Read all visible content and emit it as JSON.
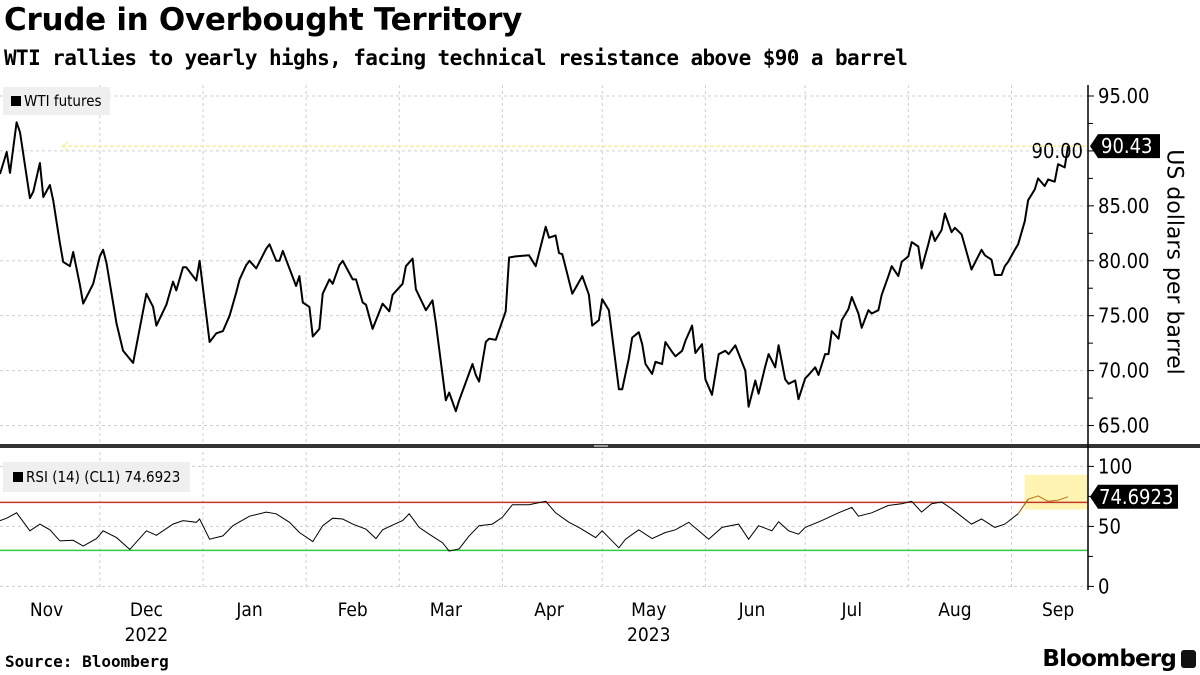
{
  "header": {
    "title": "Crude in Overbought Territory",
    "subtitle": "WTI rallies to yearly highs, facing technical resistance above $90 a barrel"
  },
  "footer": {
    "source": "Source: Bloomberg",
    "brand": "Bloomberg"
  },
  "colors": {
    "price_line": "#000000",
    "rsi_line": "#000000",
    "rsi_highlight_line": "#b8741a",
    "overbought_line": "#c0392b",
    "oversold_line": "#2ecc40",
    "highlight_fill": "#fff3a8",
    "last_value_line": "#f4f1a0"
  },
  "chart_data": [
    {
      "type": "line",
      "legend": "WTI futures",
      "ylabel": "US dollars per barrel",
      "xlim": [
        "2022-11-01",
        "2023-09-24"
      ],
      "ylim": [
        63.5,
        96
      ],
      "yticks": [
        "95.00",
        "90.00",
        "85.00",
        "80.00",
        "75.00",
        "70.00",
        "65.00"
      ],
      "last_value_label": "90.43",
      "last_value": 90.43,
      "grid": true,
      "legend_position": "top-left",
      "points": [
        [
          "2022-11-01",
          87.9
        ],
        [
          "2022-11-03",
          89.9
        ],
        [
          "2022-11-04",
          88.0
        ],
        [
          "2022-11-06",
          92.6
        ],
        [
          "2022-11-07",
          91.7
        ],
        [
          "2022-11-10",
          85.7
        ],
        [
          "2022-11-11",
          86.3
        ],
        [
          "2022-11-13",
          88.9
        ],
        [
          "2022-11-14",
          85.8
        ],
        [
          "2022-11-16",
          86.9
        ],
        [
          "2022-11-17",
          85.5
        ],
        [
          "2022-11-19",
          81.6
        ],
        [
          "2022-11-20",
          79.9
        ],
        [
          "2022-11-22",
          79.5
        ],
        [
          "2022-11-23",
          80.8
        ],
        [
          "2022-11-25",
          77.8
        ],
        [
          "2022-11-26",
          76.1
        ],
        [
          "2022-11-29",
          77.9
        ],
        [
          "2022-12-01",
          80.4
        ],
        [
          "2022-12-02",
          81.0
        ],
        [
          "2022-12-03",
          79.8
        ],
        [
          "2022-12-06",
          74.3
        ],
        [
          "2022-12-08",
          71.8
        ],
        [
          "2022-12-11",
          70.7
        ],
        [
          "2022-12-15",
          77.0
        ],
        [
          "2022-12-17",
          75.8
        ],
        [
          "2022-12-18",
          74.1
        ],
        [
          "2022-12-21",
          76.0
        ],
        [
          "2022-12-23",
          78.1
        ],
        [
          "2022-12-24",
          77.3
        ],
        [
          "2022-12-26",
          79.4
        ],
        [
          "2022-12-27",
          79.4
        ],
        [
          "2022-12-30",
          78.2
        ],
        [
          "2022-12-31",
          80.0
        ],
        [
          "2023-01-03",
          72.6
        ],
        [
          "2023-01-05",
          73.4
        ],
        [
          "2023-01-07",
          73.6
        ],
        [
          "2023-01-09",
          75.0
        ],
        [
          "2023-01-11",
          77.1
        ],
        [
          "2023-01-12",
          78.3
        ],
        [
          "2023-01-14",
          79.6
        ],
        [
          "2023-01-15",
          80.0
        ],
        [
          "2023-01-17",
          79.3
        ],
        [
          "2023-01-20",
          81.1
        ],
        [
          "2023-01-21",
          81.5
        ],
        [
          "2023-01-23",
          80.0
        ],
        [
          "2023-01-24",
          80.0
        ],
        [
          "2023-01-25",
          80.9
        ],
        [
          "2023-01-29",
          77.7
        ],
        [
          "2023-01-30",
          78.6
        ],
        [
          "2023-01-31",
          76.2
        ],
        [
          "2023-02-02",
          75.8
        ],
        [
          "2023-02-03",
          73.1
        ],
        [
          "2023-02-05",
          73.8
        ],
        [
          "2023-02-06",
          77.0
        ],
        [
          "2023-02-08",
          78.3
        ],
        [
          "2023-02-09",
          77.9
        ],
        [
          "2023-02-11",
          79.6
        ],
        [
          "2023-02-12",
          80.0
        ],
        [
          "2023-02-15",
          78.3
        ],
        [
          "2023-02-16",
          78.3
        ],
        [
          "2023-02-18",
          76.2
        ],
        [
          "2023-02-19",
          76.0
        ],
        [
          "2023-02-21",
          73.8
        ],
        [
          "2023-02-24",
          76.1
        ],
        [
          "2023-02-26",
          75.4
        ],
        [
          "2023-02-27",
          76.9
        ],
        [
          "2023-03-02",
          77.9
        ],
        [
          "2023-03-03",
          79.5
        ],
        [
          "2023-03-05",
          80.2
        ],
        [
          "2023-03-06",
          77.4
        ],
        [
          "2023-03-09",
          75.5
        ],
        [
          "2023-03-11",
          76.4
        ],
        [
          "2023-03-12",
          74.3
        ],
        [
          "2023-03-15",
          67.3
        ],
        [
          "2023-03-16",
          68.0
        ],
        [
          "2023-03-18",
          66.3
        ],
        [
          "2023-03-19",
          67.3
        ],
        [
          "2023-03-23",
          70.6
        ],
        [
          "2023-03-24",
          69.6
        ],
        [
          "2023-03-25",
          69.0
        ],
        [
          "2023-03-27",
          72.6
        ],
        [
          "2023-03-28",
          72.9
        ],
        [
          "2023-03-30",
          72.8
        ],
        [
          "2023-04-02",
          75.4
        ],
        [
          "2023-04-03",
          80.3
        ],
        [
          "2023-04-05",
          80.4
        ],
        [
          "2023-04-09",
          80.5
        ],
        [
          "2023-04-11",
          79.5
        ],
        [
          "2023-04-14",
          83.1
        ],
        [
          "2023-04-15",
          82.1
        ],
        [
          "2023-04-17",
          82.3
        ],
        [
          "2023-04-18",
          80.7
        ],
        [
          "2023-04-19",
          80.6
        ],
        [
          "2023-04-22",
          77.0
        ],
        [
          "2023-04-25",
          78.6
        ],
        [
          "2023-04-27",
          76.9
        ],
        [
          "2023-04-28",
          74.1
        ],
        [
          "2023-04-30",
          74.6
        ],
        [
          "2023-05-01",
          76.5
        ],
        [
          "2023-05-03",
          75.5
        ],
        [
          "2023-05-06",
          68.3
        ],
        [
          "2023-05-07",
          68.3
        ],
        [
          "2023-05-09",
          71.1
        ],
        [
          "2023-05-10",
          73.0
        ],
        [
          "2023-05-12",
          73.5
        ],
        [
          "2023-05-13",
          72.4
        ],
        [
          "2023-05-14",
          70.6
        ],
        [
          "2023-05-16",
          69.7
        ],
        [
          "2023-05-17",
          70.8
        ],
        [
          "2023-05-19",
          70.6
        ],
        [
          "2023-05-20",
          72.6
        ],
        [
          "2023-05-22",
          71.7
        ],
        [
          "2023-05-23",
          71.3
        ],
        [
          "2023-05-25",
          71.8
        ],
        [
          "2023-05-26",
          72.7
        ],
        [
          "2023-05-28",
          74.1
        ],
        [
          "2023-05-29",
          71.6
        ],
        [
          "2023-05-31",
          72.4
        ],
        [
          "2023-06-01",
          69.2
        ],
        [
          "2023-06-03",
          67.8
        ],
        [
          "2023-06-05",
          71.5
        ],
        [
          "2023-06-07",
          71.8
        ],
        [
          "2023-06-08",
          71.5
        ],
        [
          "2023-06-10",
          72.3
        ],
        [
          "2023-06-13",
          70.0
        ],
        [
          "2023-06-14",
          66.7
        ],
        [
          "2023-06-16",
          69.1
        ],
        [
          "2023-06-17",
          67.9
        ],
        [
          "2023-06-19",
          70.4
        ],
        [
          "2023-06-20",
          71.5
        ],
        [
          "2023-06-22",
          70.3
        ],
        [
          "2023-06-23",
          72.3
        ],
        [
          "2023-06-25",
          69.2
        ],
        [
          "2023-06-26",
          68.8
        ],
        [
          "2023-06-28",
          69.1
        ],
        [
          "2023-06-29",
          67.4
        ],
        [
          "2023-07-01",
          69.3
        ],
        [
          "2023-07-02",
          69.6
        ],
        [
          "2023-07-04",
          70.3
        ],
        [
          "2023-07-05",
          69.6
        ],
        [
          "2023-07-07",
          71.5
        ],
        [
          "2023-07-08",
          71.5
        ],
        [
          "2023-07-09",
          73.6
        ],
        [
          "2023-07-11",
          72.9
        ],
        [
          "2023-07-12",
          74.6
        ],
        [
          "2023-07-14",
          75.6
        ],
        [
          "2023-07-15",
          76.7
        ],
        [
          "2023-07-17",
          75.2
        ],
        [
          "2023-07-18",
          73.9
        ],
        [
          "2023-07-20",
          75.5
        ],
        [
          "2023-07-21",
          75.2
        ],
        [
          "2023-07-23",
          75.5
        ],
        [
          "2023-07-24",
          76.9
        ],
        [
          "2023-07-26",
          78.6
        ],
        [
          "2023-07-27",
          79.5
        ],
        [
          "2023-07-29",
          78.6
        ],
        [
          "2023-07-30",
          79.9
        ],
        [
          "2023-08-01",
          80.4
        ],
        [
          "2023-08-02",
          81.7
        ],
        [
          "2023-08-04",
          81.3
        ],
        [
          "2023-08-05",
          79.3
        ],
        [
          "2023-08-07",
          81.5
        ],
        [
          "2023-08-08",
          82.7
        ],
        [
          "2023-08-09",
          81.8
        ],
        [
          "2023-08-11",
          82.8
        ],
        [
          "2023-08-12",
          84.3
        ],
        [
          "2023-08-14",
          82.6
        ],
        [
          "2023-08-15",
          83.0
        ],
        [
          "2023-08-17",
          82.4
        ],
        [
          "2023-08-20",
          79.2
        ],
        [
          "2023-08-23",
          81.0
        ],
        [
          "2023-08-24",
          80.5
        ],
        [
          "2023-08-26",
          80.1
        ],
        [
          "2023-08-27",
          78.7
        ],
        [
          "2023-08-29",
          78.7
        ],
        [
          "2023-08-30",
          79.5
        ],
        [
          "2023-08-31",
          79.9
        ],
        [
          "2023-09-02",
          81.0
        ],
        [
          "2023-09-03",
          81.5
        ],
        [
          "2023-09-05",
          83.6
        ],
        [
          "2023-09-06",
          85.5
        ],
        [
          "2023-09-08",
          86.5
        ],
        [
          "2023-09-09",
          87.5
        ],
        [
          "2023-09-11",
          86.8
        ],
        [
          "2023-09-12",
          87.4
        ],
        [
          "2023-09-14",
          87.2
        ],
        [
          "2023-09-15",
          88.8
        ],
        [
          "2023-09-17",
          88.5
        ],
        [
          "2023-09-18",
          90.43
        ]
      ]
    },
    {
      "type": "line",
      "legend": "RSI (14) (CL1) 74.6923",
      "xlim": [
        "2022-11-01",
        "2023-09-24"
      ],
      "ylim": [
        -3,
        112
      ],
      "yticks": [
        "100",
        "50",
        "0"
      ],
      "overbought": 70,
      "oversold": 30,
      "highlight": {
        "from": "2023-09-05",
        "to": "2023-09-24",
        "range": [
          64,
          93
        ]
      },
      "last_value_label": "74.6923",
      "last_value": 74.6923,
      "grid": true,
      "legend_position": "top-left",
      "points": [
        [
          "2022-11-01",
          54.8
        ],
        [
          "2022-11-03",
          56.8
        ],
        [
          "2022-11-06",
          61.3
        ],
        [
          "2022-11-10",
          46.3
        ],
        [
          "2022-11-13",
          51.9
        ],
        [
          "2022-11-16",
          47.2
        ],
        [
          "2022-11-19",
          37.9
        ],
        [
          "2022-11-23",
          38.4
        ],
        [
          "2022-11-26",
          33.6
        ],
        [
          "2022-11-30",
          39.8
        ],
        [
          "2022-12-02",
          46.3
        ],
        [
          "2022-12-06",
          40.7
        ],
        [
          "2022-12-10",
          30.8
        ],
        [
          "2022-12-15",
          46.3
        ],
        [
          "2022-12-18",
          42.6
        ],
        [
          "2022-12-23",
          51.9
        ],
        [
          "2022-12-26",
          54.8
        ],
        [
          "2022-12-30",
          53.4
        ],
        [
          "2022-12-31",
          56.2
        ],
        [
          "2023-01-03",
          39.3
        ],
        [
          "2023-01-07",
          42.1
        ],
        [
          "2023-01-10",
          50.6
        ],
        [
          "2023-01-15",
          58.5
        ],
        [
          "2023-01-20",
          61.9
        ],
        [
          "2023-01-23",
          60.5
        ],
        [
          "2023-01-27",
          53.4
        ],
        [
          "2023-01-30",
          44.9
        ],
        [
          "2023-02-03",
          37.3
        ],
        [
          "2023-02-06",
          50.6
        ],
        [
          "2023-02-09",
          56.8
        ],
        [
          "2023-02-12",
          56.2
        ],
        [
          "2023-02-15",
          51.9
        ],
        [
          "2023-02-19",
          47.7
        ],
        [
          "2023-02-22",
          39.8
        ],
        [
          "2023-02-24",
          47.2
        ],
        [
          "2023-02-27",
          51.1
        ],
        [
          "2023-03-02",
          54.8
        ],
        [
          "2023-03-04",
          60.5
        ],
        [
          "2023-03-07",
          49.2
        ],
        [
          "2023-03-10",
          43.5
        ],
        [
          "2023-03-14",
          36.4
        ],
        [
          "2023-03-16",
          29.4
        ],
        [
          "2023-03-19",
          31.3
        ],
        [
          "2023-03-22",
          42.1
        ],
        [
          "2023-03-25",
          50.6
        ],
        [
          "2023-03-29",
          51.9
        ],
        [
          "2023-04-01",
          57.6
        ],
        [
          "2023-04-04",
          68.1
        ],
        [
          "2023-04-09",
          68.1
        ],
        [
          "2023-04-14",
          70.9
        ],
        [
          "2023-04-17",
          61.3
        ],
        [
          "2023-04-21",
          53.4
        ],
        [
          "2023-04-24",
          49.2
        ],
        [
          "2023-04-29",
          40.7
        ],
        [
          "2023-05-01",
          46.3
        ],
        [
          "2023-05-06",
          32.2
        ],
        [
          "2023-05-08",
          39.3
        ],
        [
          "2023-05-12",
          47.2
        ],
        [
          "2023-05-16",
          39.8
        ],
        [
          "2023-05-20",
          44.9
        ],
        [
          "2023-05-23",
          47.2
        ],
        [
          "2023-05-27",
          53.4
        ],
        [
          "2023-05-30",
          46.3
        ],
        [
          "2023-06-02",
          39.3
        ],
        [
          "2023-06-06",
          49.2
        ],
        [
          "2023-06-11",
          51.9
        ],
        [
          "2023-06-14",
          39.3
        ],
        [
          "2023-06-17",
          50.6
        ],
        [
          "2023-06-21",
          46.3
        ],
        [
          "2023-06-23",
          53.9
        ],
        [
          "2023-06-26",
          46.3
        ],
        [
          "2023-06-29",
          43.5
        ],
        [
          "2023-07-01",
          49.2
        ],
        [
          "2023-07-06",
          54.8
        ],
        [
          "2023-07-11",
          61.3
        ],
        [
          "2023-07-15",
          65.8
        ],
        [
          "2023-07-17",
          58.5
        ],
        [
          "2023-07-21",
          61.3
        ],
        [
          "2023-07-26",
          67.5
        ],
        [
          "2023-07-30",
          68.9
        ],
        [
          "2023-08-02",
          70.9
        ],
        [
          "2023-08-05",
          61.9
        ],
        [
          "2023-08-08",
          68.9
        ],
        [
          "2023-08-11",
          70.3
        ],
        [
          "2023-08-14",
          64.7
        ],
        [
          "2023-08-20",
          51.9
        ],
        [
          "2023-08-23",
          56.2
        ],
        [
          "2023-08-27",
          49.2
        ],
        [
          "2023-08-30",
          51.9
        ],
        [
          "2023-09-03",
          60.5
        ],
        [
          "2023-09-06",
          72.6
        ],
        [
          "2023-09-09",
          75.4
        ],
        [
          "2023-09-12",
          70.9
        ],
        [
          "2023-09-15",
          71.8
        ],
        [
          "2023-09-18",
          74.69
        ]
      ]
    }
  ],
  "xaxis": {
    "months": [
      "Nov",
      "Dec",
      "Jan",
      "Feb",
      "Mar",
      "Apr",
      "May",
      "Jun",
      "Jul",
      "Aug",
      "Sep"
    ],
    "month_dates": [
      "2022-11-15",
      "2022-12-15",
      "2023-01-15",
      "2023-02-15",
      "2023-03-15",
      "2023-04-15",
      "2023-05-15",
      "2023-06-15",
      "2023-07-15",
      "2023-08-15",
      "2023-09-15"
    ],
    "years": [
      {
        "label": "2022",
        "date": "2022-12-15"
      },
      {
        "label": "2023",
        "date": "2023-05-15"
      }
    ]
  }
}
